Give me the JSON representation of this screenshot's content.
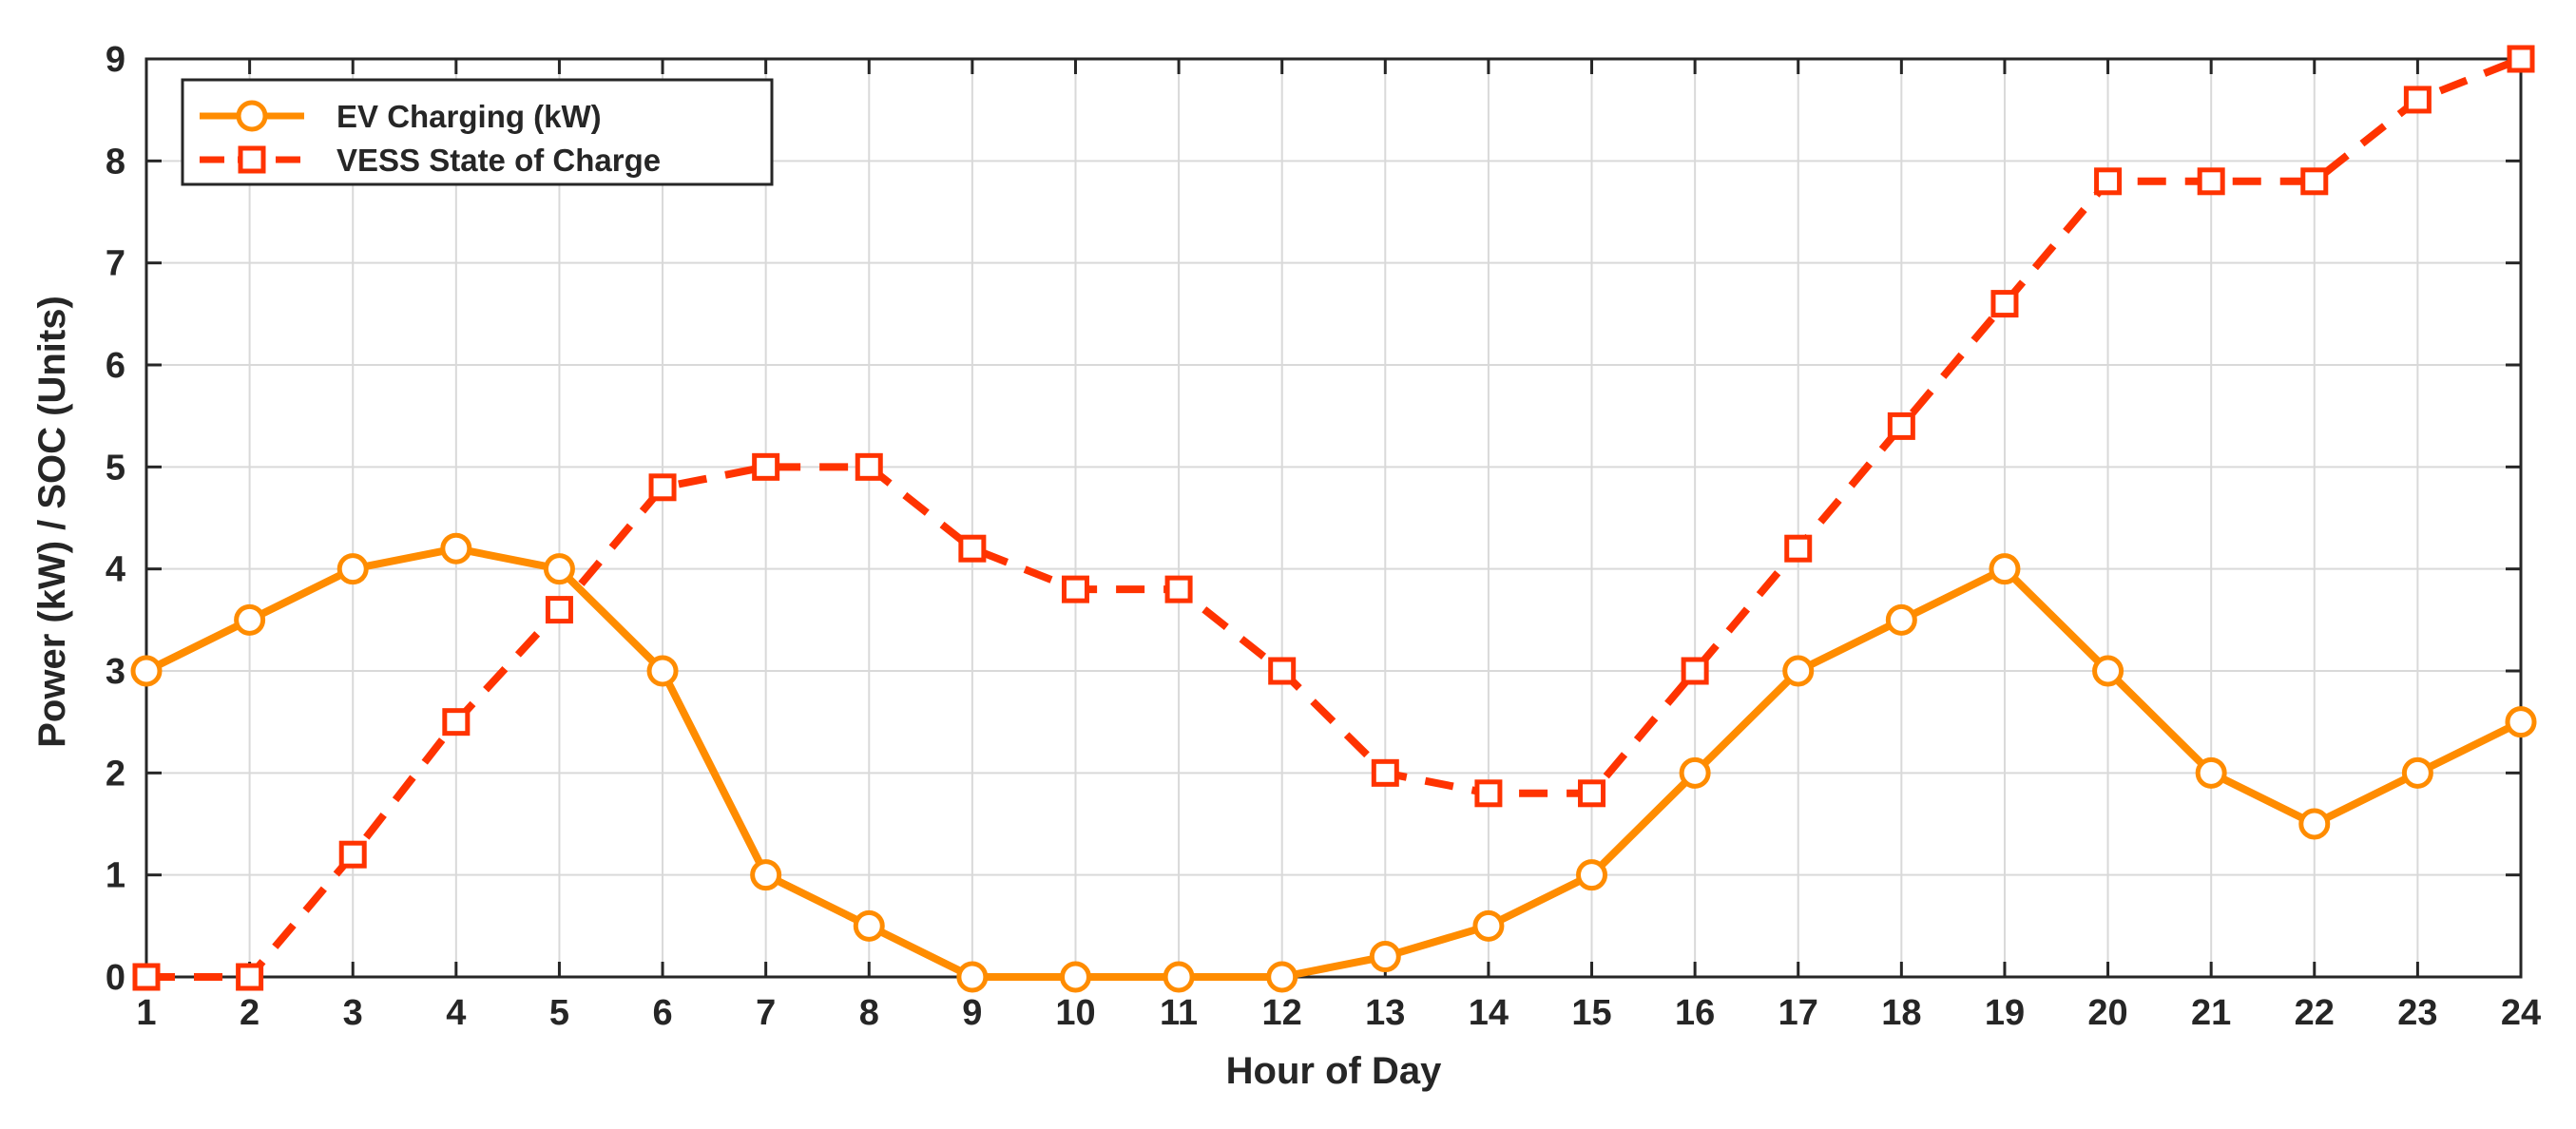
{
  "chart_data": {
    "type": "line",
    "title": "",
    "xlabel": "Hour of Day",
    "ylabel": "Power (kW) / SOC (Units)",
    "x": [
      1,
      2,
      3,
      4,
      5,
      6,
      7,
      8,
      9,
      10,
      11,
      12,
      13,
      14,
      15,
      16,
      17,
      18,
      19,
      20,
      21,
      22,
      23,
      24
    ],
    "xlim": [
      1,
      24
    ],
    "ylim": [
      0,
      9
    ],
    "yticks": [
      0,
      1,
      2,
      3,
      4,
      5,
      6,
      7,
      8,
      9
    ],
    "grid": true,
    "legend_position": "top-left",
    "series": [
      {
        "name": "EV Charging (kW)",
        "color": "#ff8c00",
        "line_style": "solid",
        "marker": "circle",
        "values": [
          3,
          3.5,
          4,
          4.2,
          4,
          3,
          1,
          0.5,
          0,
          0,
          0,
          0,
          0.2,
          0.5,
          1,
          2,
          3,
          3.5,
          4,
          3,
          2,
          1.5,
          2,
          2.5
        ]
      },
      {
        "name": "VESS State of Charge",
        "color": "#ff3300",
        "line_style": "dashed",
        "marker": "square",
        "values": [
          0,
          0,
          1.2,
          2.5,
          3.6,
          4.8,
          5,
          5,
          4.2,
          3.8,
          3.8,
          3,
          2,
          1.8,
          1.8,
          3,
          4.2,
          5.4,
          6.6,
          7.8,
          7.8,
          7.8,
          8.6,
          9
        ]
      }
    ]
  }
}
